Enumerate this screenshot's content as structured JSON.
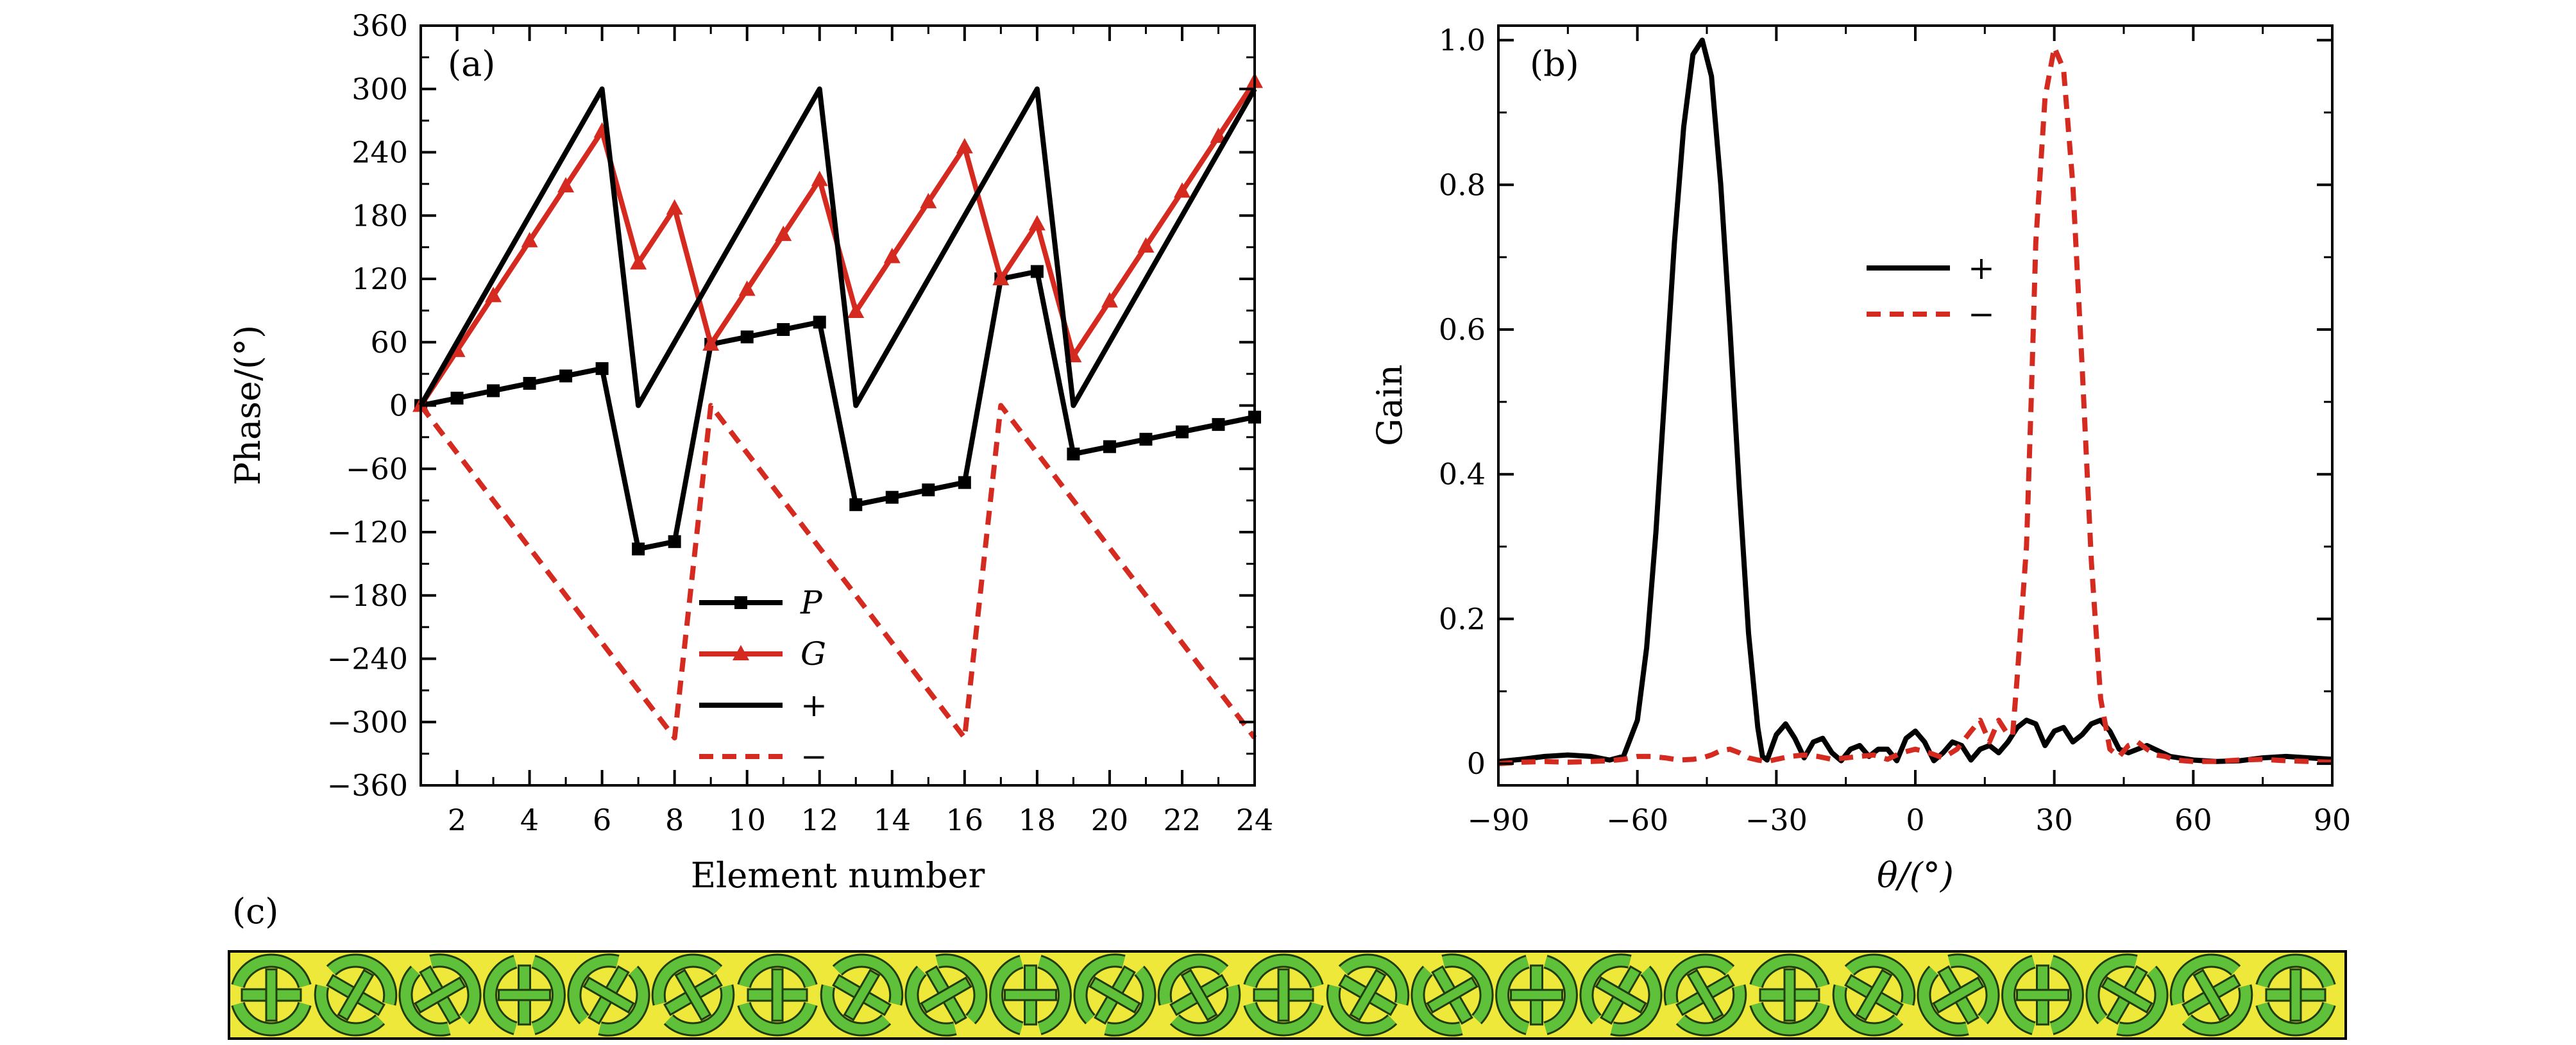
{
  "chart_data": [
    {
      "panel_label": "(a)",
      "type": "line",
      "xlabel": "Element number",
      "ylabel": "Phase/(°)",
      "xlim": [
        1,
        24
      ],
      "ylim": [
        -360,
        360
      ],
      "x_ticks": [
        2,
        4,
        6,
        8,
        10,
        12,
        14,
        16,
        18,
        20,
        22,
        24
      ],
      "y_ticks": [
        360,
        300,
        240,
        180,
        120,
        60,
        0,
        -60,
        -120,
        -180,
        -240,
        -300,
        -360
      ],
      "y_tick_labels": [
        "360",
        "300",
        "240",
        "180",
        "120",
        "60",
        "0",
        "−60",
        "−120",
        "−180",
        "−240",
        "−300",
        "−360"
      ],
      "grid": false,
      "legend_position": "bottom-center",
      "series": [
        {
          "name": "P",
          "color": "#000000",
          "style": "solid",
          "marker": "square",
          "x": [
            1,
            2,
            3,
            4,
            5,
            6,
            7,
            8,
            9,
            10,
            11,
            12,
            13,
            14,
            15,
            16,
            17,
            18,
            19,
            20,
            21,
            22,
            23,
            24
          ],
          "values": [
            0,
            7,
            14,
            21,
            28,
            35,
            -136,
            -129,
            58,
            65,
            72,
            79,
            -94,
            -87,
            -80,
            -73,
            120,
            127,
            -46,
            -39,
            -32,
            -25,
            -18,
            -11
          ]
        },
        {
          "name": "G",
          "color": "#d42a1f",
          "style": "solid",
          "marker": "triangle",
          "x": [
            1,
            2,
            3,
            4,
            5,
            6,
            7,
            8,
            9,
            10,
            11,
            12,
            13,
            14,
            15,
            16,
            17,
            18,
            19,
            20,
            21,
            22,
            23,
            24
          ],
          "values": [
            0,
            52,
            104,
            156,
            208,
            260,
            135,
            187,
            58,
            110,
            162,
            214,
            89,
            141,
            193,
            245,
            120,
            172,
            47,
            99,
            151,
            203,
            255,
            307
          ]
        },
        {
          "name": "+",
          "color": "#000000",
          "style": "solid",
          "marker": "none",
          "x": [
            1,
            6,
            7,
            12,
            13,
            18,
            19,
            24
          ],
          "values": [
            0,
            300,
            0,
            300,
            0,
            300,
            0,
            300
          ]
        },
        {
          "name": "−",
          "color": "#d42a1f",
          "style": "dashed",
          "marker": "none",
          "x": [
            1,
            8,
            9,
            16,
            17,
            24
          ],
          "values": [
            0,
            -315,
            0,
            -315,
            0,
            -315
          ]
        }
      ]
    },
    {
      "panel_label": "(b)",
      "type": "line",
      "xlabel": "θ/(°)",
      "ylabel": "Gain",
      "xlim": [
        -90,
        90
      ],
      "ylim": [
        -0.03,
        1.02
      ],
      "x_ticks": [
        -90,
        -60,
        -30,
        0,
        30,
        60,
        90
      ],
      "x_tick_labels": [
        "−90",
        "−60",
        "−30",
        "0",
        "30",
        "60",
        "90"
      ],
      "y_ticks": [
        0,
        0.2,
        0.4,
        0.6,
        0.8,
        1.0
      ],
      "y_tick_labels": [
        "0",
        "0.2",
        "0.4",
        "0.6",
        "0.8",
        "1.0"
      ],
      "grid": false,
      "legend_position": "center-right",
      "series": [
        {
          "name": "+",
          "color": "#000000",
          "style": "solid",
          "x": [
            -90,
            -85,
            -80,
            -75,
            -70,
            -66,
            -63,
            -60,
            -58,
            -56,
            -54,
            -52,
            -50,
            -48,
            -46,
            -44,
            -42,
            -40,
            -38,
            -36,
            -34,
            -33,
            -32,
            -30,
            -28,
            -26,
            -24,
            -22,
            -20,
            -18,
            -16,
            -14,
            -12,
            -10,
            -8,
            -6,
            -4,
            -2,
            0,
            2,
            4,
            6,
            8,
            10,
            12,
            14,
            16,
            18,
            20,
            22,
            24,
            26,
            28,
            30,
            32,
            34,
            36,
            38,
            40,
            42,
            44,
            46,
            50,
            55,
            60,
            65,
            70,
            75,
            80,
            85,
            90
          ],
          "values": [
            0.003,
            0.006,
            0.01,
            0.012,
            0.01,
            0.005,
            0.01,
            0.06,
            0.16,
            0.32,
            0.52,
            0.72,
            0.88,
            0.98,
            1.0,
            0.95,
            0.8,
            0.6,
            0.38,
            0.18,
            0.05,
            0.01,
            0.005,
            0.04,
            0.055,
            0.035,
            0.008,
            0.03,
            0.035,
            0.015,
            0.004,
            0.02,
            0.025,
            0.01,
            0.02,
            0.02,
            0.004,
            0.035,
            0.045,
            0.03,
            0.004,
            0.015,
            0.03,
            0.025,
            0.005,
            0.02,
            0.025,
            0.015,
            0.03,
            0.05,
            0.06,
            0.055,
            0.025,
            0.045,
            0.05,
            0.03,
            0.04,
            0.055,
            0.06,
            0.045,
            0.02,
            0.015,
            0.025,
            0.01,
            0.005,
            0.003,
            0.004,
            0.008,
            0.01,
            0.008,
            0.006
          ]
        },
        {
          "name": "−",
          "color": "#d42a1f",
          "style": "dashed",
          "x": [
            -90,
            -85,
            -80,
            -75,
            -70,
            -66,
            -63,
            -60,
            -57,
            -54,
            -51,
            -48,
            -46,
            -44,
            -42,
            -40,
            -38,
            -36,
            -34,
            -32,
            -30,
            -27,
            -24,
            -21,
            -18,
            -15,
            -12,
            -9,
            -6,
            -3,
            0,
            3,
            6,
            9,
            12,
            14,
            16,
            18,
            20,
            21,
            22,
            24,
            25,
            26,
            28,
            30,
            32,
            34,
            36,
            38,
            40,
            42,
            44,
            46,
            48,
            50,
            52,
            54,
            56,
            58,
            60,
            65,
            70,
            75,
            80,
            85,
            90
          ],
          "values": [
            0.0,
            0.002,
            0.003,
            0.002,
            0.003,
            0.004,
            0.006,
            0.01,
            0.01,
            0.008,
            0.005,
            0.006,
            0.008,
            0.012,
            0.018,
            0.02,
            0.015,
            0.008,
            0.005,
            0.003,
            0.006,
            0.01,
            0.012,
            0.01,
            0.006,
            0.008,
            0.01,
            0.012,
            0.006,
            0.015,
            0.02,
            0.015,
            0.008,
            0.02,
            0.045,
            0.06,
            0.03,
            0.06,
            0.04,
            0.04,
            0.12,
            0.3,
            0.5,
            0.72,
            0.92,
            0.99,
            0.96,
            0.8,
            0.55,
            0.28,
            0.09,
            0.02,
            0.01,
            0.025,
            0.03,
            0.02,
            0.012,
            0.01,
            0.005,
            0.004,
            0.003,
            0.003,
            0.005,
            0.006,
            0.004,
            0.003,
            0.002
          ]
        }
      ]
    }
  ],
  "panel_c": {
    "label": "(c)",
    "strip_color": "#eee83a",
    "cell_color": "#5fc13a",
    "element_angles_deg": [
      0,
      30,
      60,
      90,
      120,
      150,
      180,
      210,
      240,
      270,
      300,
      330,
      360,
      390,
      420,
      450,
      480,
      510,
      540,
      570,
      600,
      630,
      660,
      690,
      720
    ]
  }
}
